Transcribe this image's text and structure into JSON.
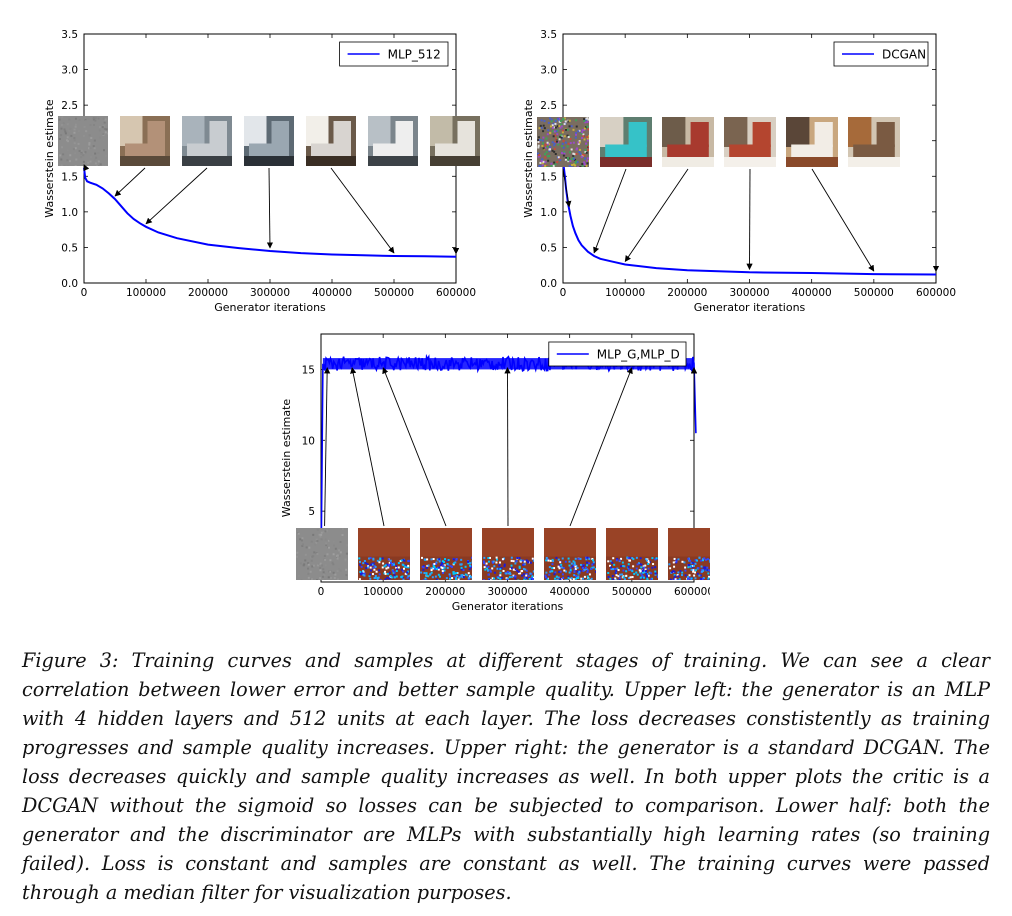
{
  "chart_data": [
    {
      "type": "line",
      "xlabel": "Generator iterations",
      "ylabel": "Wasserstein estimate",
      "xlim": [
        0,
        600000
      ],
      "ylim": [
        0,
        3.5
      ],
      "xticks": [
        0,
        100000,
        200000,
        300000,
        400000,
        500000,
        600000
      ],
      "yticks": [
        0.0,
        0.5,
        1.0,
        1.5,
        2.0,
        2.5,
        3.0,
        3.5
      ],
      "ytick_labels": [
        "0.0",
        "0.5",
        "1.0",
        "1.5",
        "2.0",
        "2.5",
        "3.0",
        "3.5"
      ],
      "legend_position": "top-right",
      "grid": false,
      "series": [
        {
          "name": "MLP_512",
          "color": "#0000ff",
          "x": [
            0,
            2000,
            5000,
            10000,
            20000,
            30000,
            40000,
            50000,
            60000,
            70000,
            80000,
            90000,
            100000,
            120000,
            150000,
            200000,
            250000,
            300000,
            350000,
            400000,
            450000,
            500000,
            550000,
            600000
          ],
          "y": [
            1.62,
            1.48,
            1.43,
            1.41,
            1.38,
            1.33,
            1.26,
            1.18,
            1.08,
            0.98,
            0.9,
            0.84,
            0.79,
            0.71,
            0.63,
            0.54,
            0.49,
            0.45,
            0.42,
            0.4,
            0.39,
            0.38,
            0.375,
            0.37
          ]
        }
      ],
      "samples_at": [
        0,
        50000,
        100000,
        300000,
        500000,
        600000,
        600000
      ],
      "sample_style": "mlp"
    },
    {
      "type": "line",
      "xlabel": "Generator iterations",
      "ylabel": "Wasserstein estimate",
      "xlim": [
        0,
        600000
      ],
      "ylim": [
        0,
        3.5
      ],
      "xticks": [
        0,
        100000,
        200000,
        300000,
        400000,
        500000,
        600000
      ],
      "yticks": [
        0.0,
        0.5,
        1.0,
        1.5,
        2.0,
        2.5,
        3.0,
        3.5
      ],
      "ytick_labels": [
        "0.0",
        "0.5",
        "1.0",
        "1.5",
        "2.0",
        "2.5",
        "3.0",
        "3.5"
      ],
      "legend_position": "top-right",
      "grid": false,
      "series": [
        {
          "name": "DCGAN",
          "color": "#0000ff",
          "x": [
            0,
            1000,
            3000,
            5000,
            8000,
            12000,
            16000,
            20000,
            25000,
            30000,
            40000,
            50000,
            60000,
            80000,
            100000,
            150000,
            200000,
            300000,
            400000,
            500000,
            600000
          ],
          "y": [
            1.72,
            1.65,
            1.5,
            1.32,
            1.12,
            0.94,
            0.8,
            0.7,
            0.6,
            0.53,
            0.44,
            0.38,
            0.34,
            0.3,
            0.26,
            0.21,
            0.18,
            0.15,
            0.14,
            0.125,
            0.12
          ]
        }
      ],
      "samples_at": [
        10000,
        50000,
        100000,
        300000,
        500000,
        600000
      ],
      "sample_style": "dcgan"
    },
    {
      "type": "line",
      "xlabel": "Generator iterations",
      "ylabel": "Wasserstein estimate",
      "xlim": [
        0,
        600000
      ],
      "ylim": [
        0,
        17.5
      ],
      "xticks": [
        0,
        100000,
        200000,
        300000,
        400000,
        500000,
        600000
      ],
      "yticks": [
        5,
        10,
        15
      ],
      "ytick_labels": [
        "5",
        "10",
        "15"
      ],
      "legend_position": "top-right",
      "grid": false,
      "series": [
        {
          "name": "MLP_G,MLP_D",
          "color": "#0000ff",
          "x": [
            0,
            3000,
            600000,
            603000
          ],
          "y": [
            0.5,
            15.4,
            15.4,
            10.5
          ],
          "noise": 0.5
        }
      ],
      "samples_at": [
        10000,
        50000,
        100000,
        300000,
        500000,
        600000,
        600000
      ],
      "sample_style": "failed"
    }
  ],
  "caption": "Figure 3: Training curves and samples at different stages of training. We can see a clear correlation between lower error and better sample quality. Upper left: the generator is an MLP with 4 hidden layers and 512 units at each layer. The loss decreases constistently as training progresses and sample quality increases. Upper right: the generator is a standard DCGAN. The loss decreases quickly and sample quality increases as well. In both upper plots the critic is a DCGAN without the sigmoid so losses can be subjected to comparison. Lower half: both the generator and the discriminator are MLPs with substantially high learning rates (so training failed). Loss is constant and samples are constant as well. The training curves were passed through a median filter for visualization purposes."
}
